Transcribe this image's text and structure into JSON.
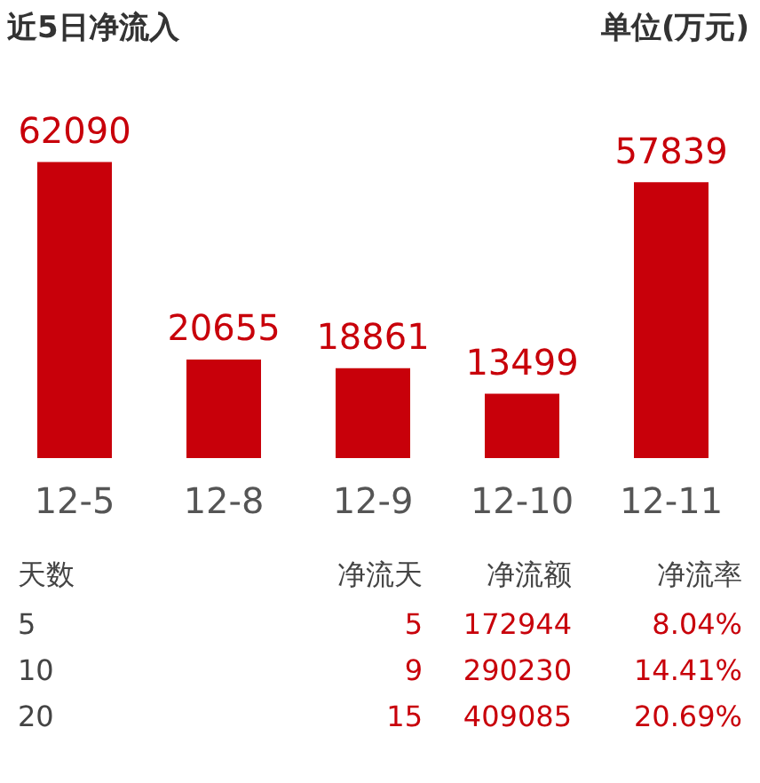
{
  "chart_data": [
    {
      "type": "bar",
      "title": "近5日净流入",
      "annotations": [
        "单位(万元)"
      ],
      "categories": [
        "12-5",
        "12-8",
        "12-9",
        "12-10",
        "12-11"
      ],
      "values": [
        62090,
        20655,
        18861,
        13499,
        57839
      ],
      "color": "#c8000a",
      "data_labels": true,
      "grid": false,
      "legend": false
    },
    {
      "type": "other",
      "annotations": [
        "天数",
        "净流天",
        "净流额",
        "净流率",
        "5",
        "5",
        "172944",
        "8.04%",
        "10",
        "9",
        "290230",
        "14.41%",
        "20",
        "15",
        "409085",
        "20.69%"
      ]
    }
  ]
}
